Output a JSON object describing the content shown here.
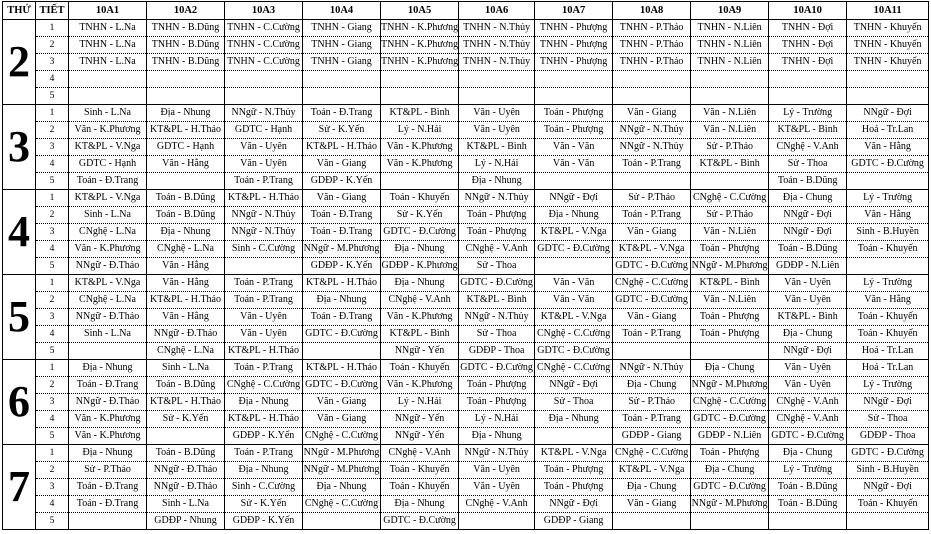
{
  "header": {
    "day_label": "THỨ",
    "period_label": "TIẾT",
    "classes": [
      "10A1",
      "10A2",
      "10A3",
      "10A4",
      "10A5",
      "10A6",
      "10A7",
      "10A8",
      "10A9",
      "10A10",
      "10A11"
    ]
  },
  "days": [
    {
      "day": "2",
      "periods": [
        {
          "n": "1",
          "cells": [
            "TNHN - L.Na",
            "TNHN - B.Dũng",
            "TNHN - C.Cường",
            "TNHN - Giang",
            "TNHN - K.Phương",
            "TNHN - N.Thủy",
            "TNHN - Phượng",
            "TNHN - P.Thảo",
            "TNHN - N.Liên",
            "TNHN - Đợi",
            "TNHN - Khuyến"
          ]
        },
        {
          "n": "2",
          "cells": [
            "TNHN - L.Na",
            "TNHN - B.Dũng",
            "TNHN - C.Cường",
            "TNHN - Giang",
            "TNHN - K.Phương",
            "TNHN - N.Thủy",
            "TNHN - Phượng",
            "TNHN - P.Thảo",
            "TNHN - N.Liên",
            "TNHN - Đợi",
            "TNHN - Khuyến"
          ]
        },
        {
          "n": "3",
          "cells": [
            "TNHN - L.Na",
            "TNHN - B.Dũng",
            "TNHN - C.Cường",
            "TNHN - Giang",
            "TNHN - K.Phương",
            "TNHN - N.Thủy",
            "TNHN - Phượng",
            "TNHN - P.Thảo",
            "TNHN - N.Liên",
            "TNHN - Đợi",
            "TNHN - Khuyến"
          ]
        },
        {
          "n": "4",
          "cells": [
            "",
            "",
            "",
            "",
            "",
            "",
            "",
            "",
            "",
            "",
            ""
          ]
        },
        {
          "n": "5",
          "cells": [
            "",
            "",
            "",
            "",
            "",
            "",
            "",
            "",
            "",
            "",
            ""
          ]
        }
      ]
    },
    {
      "day": "3",
      "periods": [
        {
          "n": "1",
          "cells": [
            "Sinh - L.Na",
            "Địa - Nhung",
            "NNgữ - N.Thủy",
            "Toán - Đ.Trang",
            "KT&PL - Bình",
            "Văn - Uyên",
            "Toán - Phượng",
            "Văn - Giang",
            "Văn - N.Liên",
            "Lý - Trường",
            "NNgữ - Đợi"
          ]
        },
        {
          "n": "2",
          "cells": [
            "Văn - K.Phương",
            "KT&PL - H.Thảo",
            "GDTC - Hạnh",
            "Sử - K.Yến",
            "Lý - N.Hải",
            "Văn - Uyên",
            "Toán - Phượng",
            "NNgữ - N.Thủy",
            "Văn - N.Liên",
            "KT&PL - Bình",
            "Hoá - Tr.Lan"
          ]
        },
        {
          "n": "3",
          "cells": [
            "KT&PL - V.Nga",
            "GDTC - Hạnh",
            "Văn - Uyên",
            "KT&PL - H.Thảo",
            "Văn - K.Phương",
            "KT&PL - Bình",
            "Văn - Văn",
            "NNgữ - N.Thủy",
            "Sử - P.Thảo",
            "CNghệ - V.Anh",
            "Văn - Hằng"
          ]
        },
        {
          "n": "4",
          "cells": [
            "GDTC - Hạnh",
            "Văn - Hằng",
            "Văn - Uyên",
            "Văn - Giang",
            "Văn - K.Phương",
            "Lý - N.Hải",
            "Văn - Văn",
            "Toán - P.Trang",
            "KT&PL - Bình",
            "Sử - Thoa",
            "GDTC - Đ.Cường"
          ]
        },
        {
          "n": "5",
          "cells": [
            "Toán - Đ.Trang",
            "",
            "Toán - P.Trang",
            "GDĐP - K.Yến",
            "",
            "Địa - Nhung",
            "",
            "",
            "",
            "Toán - B.Dũng",
            ""
          ]
        }
      ]
    },
    {
      "day": "4",
      "periods": [
        {
          "n": "1",
          "cells": [
            "KT&PL - V.Nga",
            "Toán - B.Dũng",
            "KT&PL - H.Thảo",
            "Văn - Giang",
            "Toán - Khuyến",
            "NNgữ - N.Thủy",
            "NNgữ - Đợi",
            "Sử - P.Thảo",
            "CNghệ - C.Cường",
            "Địa - Chung",
            "Lý - Trường"
          ]
        },
        {
          "n": "2",
          "cells": [
            "Sinh - L.Na",
            "Toán - B.Dũng",
            "NNgữ - N.Thủy",
            "Toán - Đ.Trang",
            "Sử - K.Yến",
            "Toán - Phượng",
            "Địa - Nhung",
            "Toán - P.Trang",
            "Sử - P.Thảo",
            "NNgữ - Đợi",
            "Văn - Hằng"
          ]
        },
        {
          "n": "3",
          "cells": [
            "CNghệ - L.Na",
            "Địa - Nhung",
            "NNgữ - N.Thủy",
            "Toán - Đ.Trang",
            "GDTC - Đ.Cường",
            "Toán - Phượng",
            "KT&PL - V.Nga",
            "Văn - Giang",
            "Văn - N.Liên",
            "NNgữ - Đợi",
            "Sinh - B.Huyền"
          ]
        },
        {
          "n": "4",
          "cells": [
            "Văn - K.Phương",
            "CNghệ - L.Na",
            "Sinh - C.Cường",
            "NNgữ - M.Phương",
            "Địa - Nhung",
            "CNghệ - V.Anh",
            "GDTC - Đ.Cường",
            "KT&PL - V.Nga",
            "Toán - Phượng",
            "Toán - B.Dũng",
            "Toán - Khuyến"
          ]
        },
        {
          "n": "5",
          "cells": [
            "NNgữ - Đ.Thảo",
            "Văn - Hằng",
            "",
            "GDĐP - K.Yến",
            "GDĐP - K.Phương",
            "Sử - Thoa",
            "",
            "GDTC - Đ.Cường",
            "NNgữ - M.Phương",
            "GDĐP - N.Liên",
            ""
          ]
        }
      ]
    },
    {
      "day": "5",
      "periods": [
        {
          "n": "1",
          "cells": [
            "KT&PL - V.Nga",
            "Văn - Hằng",
            "Toán - P.Trang",
            "KT&PL - H.Thảo",
            "Địa - Nhung",
            "GDTC - Đ.Cường",
            "Văn - Văn",
            "CNghệ - C.Cường",
            "KT&PL - Bình",
            "Văn - Uyên",
            "Lý - Trường"
          ]
        },
        {
          "n": "2",
          "cells": [
            "CNghệ - L.Na",
            "KT&PL - H.Thảo",
            "Toán - P.Trang",
            "Địa - Nhung",
            "CNghệ - V.Anh",
            "KT&PL - Bình",
            "Văn - Văn",
            "GDTC - Đ.Cường",
            "Văn - N.Liên",
            "Văn - Uyên",
            "Văn - Hằng"
          ]
        },
        {
          "n": "3",
          "cells": [
            "NNgữ - Đ.Thảo",
            "Văn - Hằng",
            "Văn - Uyên",
            "Toán - Đ.Trang",
            "Văn - K.Phương",
            "NNgữ - N.Thủy",
            "KT&PL - V.Nga",
            "Văn - Giang",
            "Toán - Phượng",
            "KT&PL - Bình",
            "Toán - Khuyến"
          ]
        },
        {
          "n": "4",
          "cells": [
            "Sinh - L.Na",
            "NNgữ - Đ.Thảo",
            "Văn - Uyên",
            "GDTC - Đ.Cường",
            "KT&PL - Bình",
            "Sử - Thoa",
            "CNghệ - C.Cường",
            "Toán - P.Trang",
            "Toán - Phượng",
            "Địa - Chung",
            "Toán - Khuyến"
          ]
        },
        {
          "n": "5",
          "cells": [
            "",
            "CNghệ - L.Na",
            "KT&PL - H.Thảo",
            "",
            "NNgữ - Yến",
            "GDĐP - Thoa",
            "GDTC - Đ.Cường",
            "",
            "",
            "NNgữ - Đợi",
            "Hoá - Tr.Lan"
          ]
        }
      ]
    },
    {
      "day": "6",
      "periods": [
        {
          "n": "1",
          "cells": [
            "Địa - Nhung",
            "Sinh - L.Na",
            "Toán - P.Trang",
            "KT&PL - H.Thảo",
            "Toán - Khuyến",
            "GDTC - Đ.Cường",
            "CNghệ - C.Cường",
            "NNgữ - N.Thủy",
            "Địa - Chung",
            "Văn - Uyên",
            "Hoá - Tr.Lan"
          ]
        },
        {
          "n": "2",
          "cells": [
            "Toán - Đ.Trang",
            "Toán - B.Dũng",
            "CNghệ - C.Cường",
            "GDTC - Đ.Cường",
            "Văn - K.Phương",
            "Toán - Phượng",
            "NNgữ - Đợi",
            "Địa - Chung",
            "NNgữ - M.Phương",
            "Văn - Uyên",
            "Lý - Trường"
          ]
        },
        {
          "n": "3",
          "cells": [
            "NNgữ - Đ.Thảo",
            "KT&PL - H.Thảo",
            "Địa - Nhung",
            "Văn - Giang",
            "Lý - N.Hải",
            "Toán - Phượng",
            "Sử - Thoa",
            "Sử - P.Thảo",
            "CNghệ - C.Cường",
            "CNghệ - V.Anh",
            "NNgữ - Đợi"
          ]
        },
        {
          "n": "4",
          "cells": [
            "Văn - K.Phương",
            "Sử - K.Yến",
            "KT&PL - H.Thảo",
            "Văn - Giang",
            "NNgữ - Yến",
            "Lý - N.Hải",
            "Địa - Nhung",
            "Toán - P.Trang",
            "GDTC - Đ.Cường",
            "CNghệ - V.Anh",
            "Sử - Thoa"
          ]
        },
        {
          "n": "5",
          "cells": [
            "Văn - K.Phương",
            "",
            "GDĐP - K.Yến",
            "CNghệ - C.Cường",
            "NNgữ - Yến",
            "Địa - Nhung",
            "",
            "GDĐP - Giang",
            "GDĐP - N.Liên",
            "GDTC - Đ.Cường",
            "GDĐP - Thoa"
          ]
        }
      ]
    },
    {
      "day": "7",
      "periods": [
        {
          "n": "1",
          "cells": [
            "Địa - Nhung",
            "Toán - B.Dũng",
            "Toán - P.Trang",
            "NNgữ - M.Phương",
            "CNghệ - V.Anh",
            "NNgữ - N.Thủy",
            "KT&PL - V.Nga",
            "CNghệ - C.Cường",
            "Toán - Phượng",
            "Địa - Chung",
            "GDTC - Đ.Cường"
          ]
        },
        {
          "n": "2",
          "cells": [
            "Sử - P.Thảo",
            "NNgữ - Đ.Thảo",
            "Địa - Nhung",
            "NNgữ - M.Phương",
            "Toán - Khuyến",
            "Văn - Uyên",
            "Toán - Phượng",
            "KT&PL - V.Nga",
            "Địa - Chung",
            "Lý - Trường",
            "Sinh - B.Huyền"
          ]
        },
        {
          "n": "3",
          "cells": [
            "Toán - Đ.Trang",
            "NNgữ - Đ.Thảo",
            "Sinh - C.Cường",
            "Địa - Nhung",
            "Toán - Khuyến",
            "Văn - Uyên",
            "Toán - Phượng",
            "Địa - Chung",
            "GDTC - Đ.Cường",
            "Toán - B.Dũng",
            "NNgữ - Đợi"
          ]
        },
        {
          "n": "4",
          "cells": [
            "Toán - Đ.Trang",
            "Sinh - L.Na",
            "Sử - K.Yến",
            "CNghệ - C.Cường",
            "Địa - Nhung",
            "CNghệ - V.Anh",
            "NNgữ - Đợi",
            "Văn - Giang",
            "NNgữ - M.Phương",
            "Toán - B.Dũng",
            "Toán - Khuyến"
          ]
        },
        {
          "n": "5",
          "cells": [
            "",
            "GDĐP - Nhung",
            "GDĐP - K.Yến",
            "",
            "GDTC - Đ.Cường",
            "",
            "GDĐP - Giang",
            "",
            "",
            "",
            ""
          ]
        }
      ]
    }
  ]
}
